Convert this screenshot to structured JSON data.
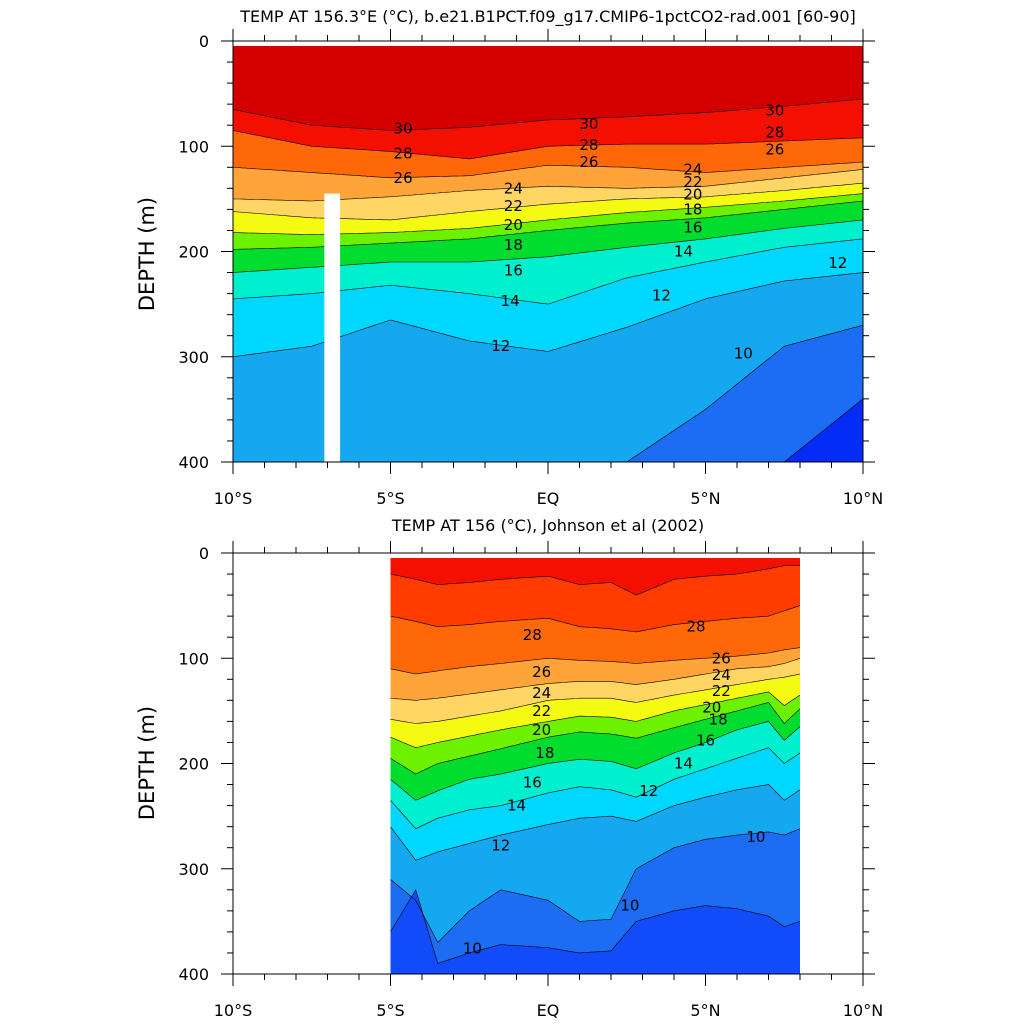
{
  "chart_data": [
    {
      "type": "contour",
      "title": "TEMP AT 156.3°E (°C), b.e21.B1PCT.f09_g17.CMIP6-1pctCO2-rad.001 [60-90]",
      "xlabel": "",
      "ylabel": "DEPTH (m)",
      "xlim": [
        -10,
        10
      ],
      "ylim": [
        400,
        0
      ],
      "x_ticks": [
        -10,
        -5,
        0,
        5,
        10
      ],
      "x_tick_labels": [
        "10°S",
        "5°S",
        "EQ",
        "5°N",
        "10°N"
      ],
      "y_ticks": [
        0,
        100,
        200,
        300,
        400
      ],
      "y_tick_labels": [
        "0",
        "100",
        "200",
        "300",
        "400"
      ],
      "data_range_x": [
        -10,
        10
      ],
      "missing_column_x": [
        -7.1,
        -6.6
      ],
      "missing_column_depth": [
        145,
        400
      ],
      "contour_interval": 1,
      "isotherm_depths": {
        "x": [
          -10,
          -7.5,
          -5,
          -2.5,
          0,
          2.5,
          5,
          7.5,
          10
        ],
        "levels": [
          {
            "temp": 30,
            "depth": [
              65,
              80,
              85,
              82,
              75,
              72,
              68,
              62,
              55
            ]
          },
          {
            "temp": 28,
            "depth": [
              85,
              100,
              105,
              112,
              100,
              98,
              98,
              95,
              92
            ]
          },
          {
            "temp": 26,
            "depth": [
              120,
              125,
              130,
              128,
              118,
              120,
              125,
              120,
              115
            ]
          },
          {
            "temp": 24,
            "depth": [
              150,
              152,
              148,
              142,
              138,
              140,
              138,
              130,
              122
            ]
          },
          {
            "temp": 22,
            "depth": [
              162,
              168,
              170,
              162,
              155,
              150,
              148,
              142,
              135
            ]
          },
          {
            "temp": 20,
            "depth": [
              182,
              184,
              182,
              178,
              170,
              163,
              158,
              152,
              145
            ]
          },
          {
            "temp": 18,
            "depth": [
              198,
              196,
              192,
              188,
              180,
              173,
              168,
              160,
              152
            ]
          },
          {
            "temp": 16,
            "depth": [
              220,
              215,
              210,
              210,
              205,
              196,
              188,
              178,
              170
            ]
          },
          {
            "temp": 14,
            "depth": [
              245,
              240,
              232,
              240,
              250,
              225,
              210,
              196,
              188
            ]
          },
          {
            "temp": 12,
            "depth": [
              300,
              290,
              265,
              285,
              295,
              272,
              245,
              228,
              220
            ]
          },
          {
            "temp": 10,
            "depth": [
              400,
              400,
              400,
              400,
              400,
              400,
              350,
              290,
              270
            ]
          },
          {
            "temp": 8,
            "depth": [
              400,
              400,
              400,
              400,
              400,
              400,
              400,
              400,
              340
            ]
          }
        ]
      },
      "contour_labels": [
        {
          "text": "30",
          "x": -4.6,
          "y": 83
        },
        {
          "text": "28",
          "x": -4.6,
          "y": 107
        },
        {
          "text": "26",
          "x": -4.6,
          "y": 130
        },
        {
          "text": "30",
          "x": 1.3,
          "y": 79
        },
        {
          "text": "28",
          "x": 1.3,
          "y": 99
        },
        {
          "text": "26",
          "x": 1.3,
          "y": 115
        },
        {
          "text": "30",
          "x": 7.2,
          "y": 66
        },
        {
          "text": "28",
          "x": 7.2,
          "y": 87
        },
        {
          "text": "26",
          "x": 7.2,
          "y": 103
        },
        {
          "text": "24",
          "x": -1.1,
          "y": 140
        },
        {
          "text": "22",
          "x": -1.1,
          "y": 157
        },
        {
          "text": "20",
          "x": -1.1,
          "y": 175
        },
        {
          "text": "18",
          "x": -1.1,
          "y": 194
        },
        {
          "text": "16",
          "x": -1.1,
          "y": 218
        },
        {
          "text": "14",
          "x": -1.2,
          "y": 247
        },
        {
          "text": "12",
          "x": -1.5,
          "y": 290
        },
        {
          "text": "24",
          "x": 4.6,
          "y": 122
        },
        {
          "text": "22",
          "x": 4.6,
          "y": 134
        },
        {
          "text": "20",
          "x": 4.6,
          "y": 146
        },
        {
          "text": "18",
          "x": 4.6,
          "y": 160
        },
        {
          "text": "16",
          "x": 4.6,
          "y": 177
        },
        {
          "text": "14",
          "x": 4.3,
          "y": 200
        },
        {
          "text": "12",
          "x": 3.6,
          "y": 242
        },
        {
          "text": "12",
          "x": 9.2,
          "y": 211
        },
        {
          "text": "10",
          "x": 6.2,
          "y": 297
        }
      ]
    },
    {
      "type": "contour",
      "title": "TEMP AT 156 (°C), Johnson et al (2002)",
      "xlabel": "",
      "ylabel": "DEPTH (m)",
      "xlim": [
        -10,
        10
      ],
      "ylim": [
        400,
        0
      ],
      "x_ticks": [
        -10,
        -5,
        0,
        5,
        10
      ],
      "x_tick_labels": [
        "10°S",
        "5°S",
        "EQ",
        "5°N",
        "10°N"
      ],
      "y_ticks": [
        0,
        100,
        200,
        300,
        400
      ],
      "y_tick_labels": [
        "0",
        "100",
        "200",
        "300",
        "400"
      ],
      "data_range_x": [
        -5,
        8
      ],
      "contour_interval": 1,
      "isotherm_depths": {
        "x": [
          -5,
          -4.2,
          -3.5,
          -2.5,
          -1.5,
          0,
          1,
          2,
          2.8,
          4,
          5,
          6,
          7,
          7.5,
          8
        ],
        "levels": [
          {
            "temp": 29,
            "depth": [
              20,
              25,
              30,
              28,
              25,
              22,
              30,
              28,
              40,
              25,
              22,
              20,
              15,
              12,
              12
            ]
          },
          {
            "temp": 28,
            "depth": [
              60,
              65,
              70,
              68,
              65,
              62,
              70,
              72,
              75,
              68,
              65,
              62,
              60,
              55,
              50
            ]
          },
          {
            "temp": 26,
            "depth": [
              110,
              115,
              112,
              108,
              105,
              100,
              102,
              103,
              105,
              102,
              100,
              98,
              95,
              92,
              90
            ]
          },
          {
            "temp": 24,
            "depth": [
              138,
              140,
              138,
              134,
              130,
              124,
              122,
              122,
              125,
              120,
              115,
              110,
              108,
              105,
              100
            ]
          },
          {
            "temp": 22,
            "depth": [
              158,
              162,
              160,
              155,
              150,
              140,
              138,
              138,
              142,
              135,
              130,
              125,
              120,
              118,
              115
            ]
          },
          {
            "temp": 20,
            "depth": [
              175,
              185,
              180,
              174,
              168,
              160,
              155,
              156,
              160,
              150,
              144,
              138,
              132,
              145,
              135
            ]
          },
          {
            "temp": 18,
            "depth": [
              195,
              210,
              200,
              193,
              186,
              175,
              170,
              172,
              176,
              166,
              158,
              150,
              142,
              162,
              148
            ]
          },
          {
            "temp": 16,
            "depth": [
              215,
              235,
              226,
              215,
              210,
              200,
              196,
              198,
              205,
              190,
              180,
              168,
              160,
              178,
              165
            ]
          },
          {
            "temp": 14,
            "depth": [
              235,
              262,
              252,
              244,
              240,
              228,
              222,
              225,
              232,
              215,
              205,
              195,
              185,
              200,
              190
            ]
          },
          {
            "temp": 12,
            "depth": [
              260,
              292,
              284,
              276,
              268,
              258,
              252,
              250,
              255,
              240,
              232,
              225,
              220,
              235,
              225
            ]
          },
          {
            "temp": 10,
            "depth": [
              310,
              330,
              370,
              340,
              320,
              330,
              350,
              348,
              300,
              280,
              272,
              268,
              265,
              268,
              262
            ]
          },
          {
            "temp": 9,
            "depth": [
              360,
              320,
              390,
              380,
              372,
              375,
              380,
              378,
              350,
              340,
              335,
              338,
              345,
              355,
              350
            ]
          },
          {
            "temp": 8,
            "depth": [
              400,
              400,
              400,
              400,
              400,
              400,
              400,
              400,
              400,
              400,
              400,
              400,
              400,
              400,
              400
            ]
          }
        ]
      },
      "contour_labels": [
        {
          "text": "28",
          "x": -0.5,
          "y": 78
        },
        {
          "text": "28",
          "x": 4.7,
          "y": 70
        },
        {
          "text": "26",
          "x": -0.2,
          "y": 113
        },
        {
          "text": "24",
          "x": -0.2,
          "y": 133
        },
        {
          "text": "22",
          "x": -0.2,
          "y": 150
        },
        {
          "text": "20",
          "x": -0.2,
          "y": 168
        },
        {
          "text": "18",
          "x": -0.1,
          "y": 190
        },
        {
          "text": "16",
          "x": -0.5,
          "y": 218
        },
        {
          "text": "14",
          "x": -1.0,
          "y": 240
        },
        {
          "text": "12",
          "x": -1.5,
          "y": 278
        },
        {
          "text": "26",
          "x": 5.5,
          "y": 100
        },
        {
          "text": "24",
          "x": 5.5,
          "y": 116
        },
        {
          "text": "22",
          "x": 5.5,
          "y": 131
        },
        {
          "text": "20",
          "x": 5.2,
          "y": 147
        },
        {
          "text": "18",
          "x": 5.4,
          "y": 158
        },
        {
          "text": "16",
          "x": 5.0,
          "y": 178
        },
        {
          "text": "14",
          "x": 4.3,
          "y": 200
        },
        {
          "text": "12",
          "x": 3.2,
          "y": 226
        },
        {
          "text": "10",
          "x": 6.6,
          "y": 270
        },
        {
          "text": "10",
          "x": 2.6,
          "y": 335
        },
        {
          "text": "10",
          "x": -2.4,
          "y": 376
        }
      ]
    }
  ]
}
